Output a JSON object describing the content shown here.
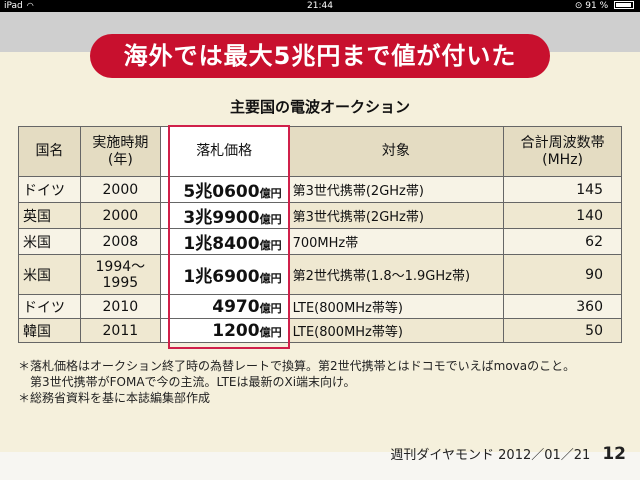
{
  "status_bar": {
    "device": "iPad",
    "time": "21:44",
    "battery": "91 %",
    "battery_level": 0.91
  },
  "banner": {
    "title": "海外では最大5兆円まで値が付いた"
  },
  "subtitle": "主要国の電波オークション",
  "table": {
    "headers": {
      "country": "国名",
      "year": "実施時期\n(年)",
      "price": "落札価格",
      "target": "対象",
      "freq": "合計周波数帯\n(MHz)"
    },
    "rows": [
      {
        "country": "ドイツ",
        "year": "2000",
        "price_main": "5兆0600",
        "price_unit": "億円",
        "target": "第3世代携帯(2GHz帯)",
        "freq": "145"
      },
      {
        "country": "英国",
        "year": "2000",
        "price_main": "3兆9900",
        "price_unit": "億円",
        "target": "第3世代携帯(2GHz帯)",
        "freq": "140"
      },
      {
        "country": "米国",
        "year": "2008",
        "price_main": "1兆8400",
        "price_unit": "億円",
        "target": "700MHz帯",
        "freq": "62"
      },
      {
        "country": "米国",
        "year": "1994〜\n1995",
        "price_main": "1兆6900",
        "price_unit": "億円",
        "target": "第2世代携帯(1.8〜1.9GHz帯)",
        "freq": "90"
      },
      {
        "country": "ドイツ",
        "year": "2010",
        "price_main": "4970",
        "price_unit": "億円",
        "target": "LTE(800MHz帯等)",
        "freq": "360"
      },
      {
        "country": "韓国",
        "year": "2011",
        "price_main": "1200",
        "price_unit": "億円",
        "target": "LTE(800MHz帯等)",
        "freq": "50"
      }
    ]
  },
  "notes": {
    "line1": "＊落札価格はオークション終了時の為替レートで換算。第2世代携帯とはドコモでいえばmovaのこと。",
    "line2": "第3世代携帯がFOMAで今の主流。LTEは最新のXi端末向け。",
    "line3": "＊総務省資料を基に本誌編集部作成"
  },
  "footer": {
    "source": "週刊ダイヤモンド 2012／01／21",
    "page_number": "12"
  }
}
